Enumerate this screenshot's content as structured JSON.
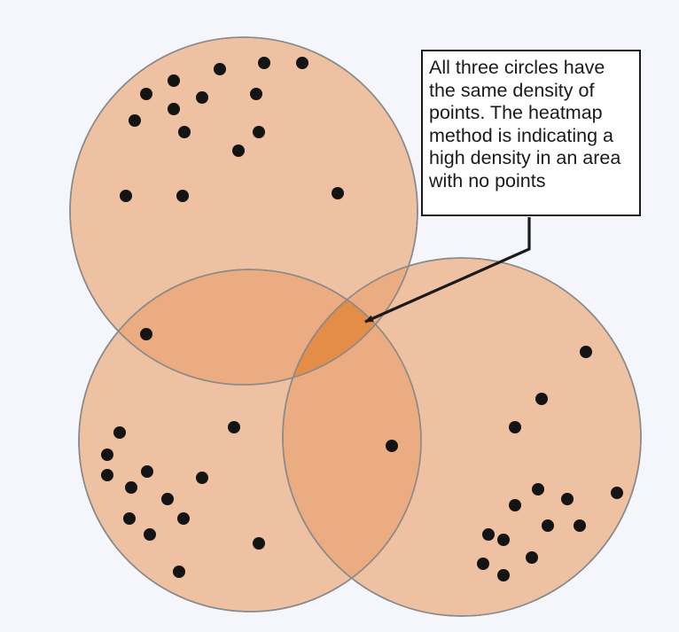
{
  "colors": {
    "background": "#f4f6fb",
    "circle_fill": "#e8a06a",
    "circle_stroke": "#8a8a8a",
    "heat_overlap": "#e07a26",
    "point": "#141414",
    "callout_border": "#1a1a1a",
    "arrow": "#1a1a1a"
  },
  "callout": {
    "text": "All three circles have\nthe same density of\npoints.  The heatmap\nmethod is indicating a\nhigh density in an area\nwith no points"
  },
  "circles": [
    {
      "name": "circle-top"
    },
    {
      "name": "circle-bottom-left"
    },
    {
      "name": "circle-bottom-right"
    }
  ]
}
